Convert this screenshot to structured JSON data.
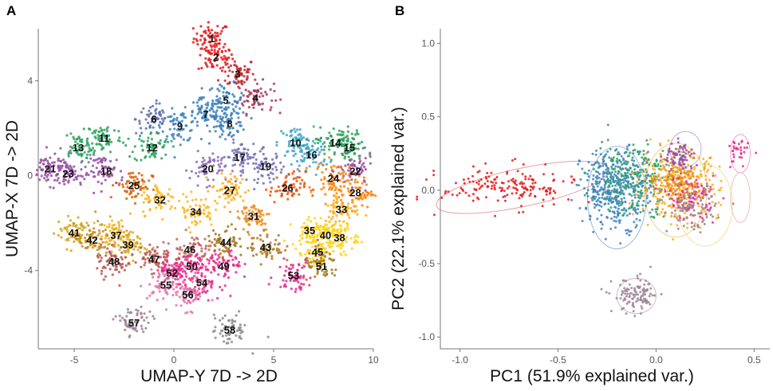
{
  "chart_data": [
    {
      "type": "scatter",
      "panel": "A",
      "xlabel": "UMAP-Y 7D -> 2D",
      "ylabel": "UMAP-X 7D -> 2D",
      "xlim": [
        -6.8,
        10
      ],
      "ylim": [
        -7.3,
        6.2
      ],
      "xticks": [
        -5,
        0,
        5,
        10
      ],
      "yticks": [
        -4,
        0,
        4
      ],
      "grid": false,
      "clusters": [
        {
          "label": "1",
          "x": 1.9,
          "y": 5.8,
          "color": "#e41a1c"
        },
        {
          "label": "2",
          "x": 2.1,
          "y": 5.0,
          "color": "#e41a1c"
        },
        {
          "label": "3",
          "x": 3.2,
          "y": 4.3,
          "color": "#c1272d"
        },
        {
          "label": "4",
          "x": 4.1,
          "y": 3.3,
          "color": "#a8385a"
        },
        {
          "label": "5",
          "x": 2.6,
          "y": 3.2,
          "color": "#377eb8"
        },
        {
          "label": "6",
          "x": -1.0,
          "y": 2.4,
          "color": "#5a6fb5"
        },
        {
          "label": "7",
          "x": 1.6,
          "y": 2.6,
          "color": "#377eb8"
        },
        {
          "label": "8",
          "x": 2.8,
          "y": 2.2,
          "color": "#377eb8"
        },
        {
          "label": "9",
          "x": 0.3,
          "y": 2.1,
          "color": "#3b83bd"
        },
        {
          "label": "10",
          "x": 6.1,
          "y": 1.4,
          "color": "#41a6c4"
        },
        {
          "label": "11",
          "x": -3.5,
          "y": 1.6,
          "color": "#2ca25f"
        },
        {
          "label": "12",
          "x": -1.1,
          "y": 1.2,
          "color": "#2ca25f"
        },
        {
          "label": "13",
          "x": -4.8,
          "y": 1.2,
          "color": "#2ca25f"
        },
        {
          "label": "14",
          "x": 8.1,
          "y": 1.4,
          "color": "#31a354"
        },
        {
          "label": "15",
          "x": 8.8,
          "y": 1.2,
          "color": "#2ca25f"
        },
        {
          "label": "16",
          "x": 6.9,
          "y": 0.9,
          "color": "#41a6c4"
        },
        {
          "label": "17",
          "x": 3.3,
          "y": 0.8,
          "color": "#7570b3"
        },
        {
          "label": "18",
          "x": -3.4,
          "y": 0.2,
          "color": "#984ea3"
        },
        {
          "label": "19",
          "x": 4.6,
          "y": 0.4,
          "color": "#7570b3"
        },
        {
          "label": "20",
          "x": 1.7,
          "y": 0.3,
          "color": "#8e6bb5"
        },
        {
          "label": "21",
          "x": -6.2,
          "y": 0.3,
          "color": "#984ea3"
        },
        {
          "label": "22",
          "x": 9.1,
          "y": 0.2,
          "color": "#984ea3"
        },
        {
          "label": "23",
          "x": -5.3,
          "y": 0.1,
          "color": "#984ea3"
        },
        {
          "label": "24",
          "x": 8.0,
          "y": -0.1,
          "color": "#ff7f00"
        },
        {
          "label": "25",
          "x": -2.0,
          "y": -0.4,
          "color": "#d95f02"
        },
        {
          "label": "26",
          "x": 5.7,
          "y": -0.5,
          "color": "#e6550d"
        },
        {
          "label": "27",
          "x": 2.8,
          "y": -0.6,
          "color": "#fdae1a"
        },
        {
          "label": "28",
          "x": 9.1,
          "y": -0.7,
          "color": "#ff7f00"
        },
        {
          "label": "31",
          "x": 4.0,
          "y": -1.7,
          "color": "#f08a18"
        },
        {
          "label": "32",
          "x": -0.7,
          "y": -1.0,
          "color": "#fdb81c"
        },
        {
          "label": "33",
          "x": 8.4,
          "y": -1.4,
          "color": "#fdae1a"
        },
        {
          "label": "34",
          "x": 1.1,
          "y": -1.5,
          "color": "#fdb81c"
        },
        {
          "label": "35",
          "x": 6.8,
          "y": -2.3,
          "color": "#ffd21a"
        },
        {
          "label": "37",
          "x": -2.9,
          "y": -2.5,
          "color": "#f0b41a"
        },
        {
          "label": "38",
          "x": 8.3,
          "y": -2.6,
          "color": "#ffd21a"
        },
        {
          "label": "39",
          "x": -2.3,
          "y": -2.9,
          "color": "#d9a522"
        },
        {
          "label": "40",
          "x": 7.6,
          "y": -2.5,
          "color": "#ffd21a"
        },
        {
          "label": "41",
          "x": -5.0,
          "y": -2.4,
          "color": "#d8a31a"
        },
        {
          "label": "42",
          "x": -4.1,
          "y": -2.7,
          "color": "#c48a1a"
        },
        {
          "label": "43",
          "x": 4.6,
          "y": -3.0,
          "color": "#b07a26"
        },
        {
          "label": "44",
          "x": 2.6,
          "y": -2.8,
          "color": "#a6761d"
        },
        {
          "label": "45",
          "x": 7.2,
          "y": -3.2,
          "color": "#ffd21a"
        },
        {
          "label": "46",
          "x": 0.8,
          "y": -3.1,
          "color": "#bd6a5a"
        },
        {
          "label": "47",
          "x": -1.0,
          "y": -3.5,
          "color": "#b5574b"
        },
        {
          "label": "48",
          "x": -3.0,
          "y": -3.6,
          "color": "#b5574b"
        },
        {
          "label": "49",
          "x": 2.5,
          "y": -3.8,
          "color": "#e7298a"
        },
        {
          "label": "50",
          "x": 0.9,
          "y": -3.8,
          "color": "#e7298a"
        },
        {
          "label": "51",
          "x": 7.4,
          "y": -3.8,
          "color": "#a6761d"
        },
        {
          "label": "52",
          "x": -0.1,
          "y": -4.1,
          "color": "#e7298a"
        },
        {
          "label": "53",
          "x": 6.0,
          "y": -4.2,
          "color": "#e7298a"
        },
        {
          "label": "54",
          "x": 1.4,
          "y": -4.5,
          "color": "#e7298a"
        },
        {
          "label": "55",
          "x": -0.4,
          "y": -4.6,
          "color": "#de77ae"
        },
        {
          "label": "56",
          "x": 0.7,
          "y": -5.0,
          "color": "#de77ae"
        },
        {
          "label": "57",
          "x": -2.0,
          "y": -6.2,
          "color": "#9c8495"
        },
        {
          "label": "58",
          "x": 2.8,
          "y": -6.5,
          "color": "#8c8c8c"
        }
      ]
    },
    {
      "type": "scatter",
      "panel": "B",
      "xlabel": "PC1 (51.9% explained var.)",
      "ylabel": "PC2 (22.1% explained var.)",
      "xlim": [
        -1.1,
        0.58
      ],
      "ylim": [
        -1.08,
        1.1
      ],
      "xticks": [
        -1.0,
        -0.5,
        0.0,
        0.5
      ],
      "xtick_labels": [
        "-1.0",
        "-0.5",
        "0.0",
        "0.5"
      ],
      "yticks": [
        -1.0,
        -0.5,
        0.0,
        0.5,
        1.0
      ],
      "ytick_labels": [
        "-1.0",
        "-0.5",
        "0.0",
        "0.5",
        "1.0"
      ],
      "grid": false,
      "groups": [
        {
          "name": "red",
          "cx": -0.75,
          "cy": 0.02,
          "sx": 0.17,
          "sy": 0.07,
          "n": 170,
          "color": "#e41a1c"
        },
        {
          "name": "blue",
          "cx": -0.2,
          "cy": 0.02,
          "sx": 0.09,
          "sy": 0.13,
          "n": 420,
          "color": "#3b83bd"
        },
        {
          "name": "green",
          "cx": -0.12,
          "cy": 0.08,
          "sx": 0.1,
          "sy": 0.12,
          "n": 200,
          "color": "#2ca25f"
        },
        {
          "name": "orange",
          "cx": 0.12,
          "cy": 0.03,
          "sx": 0.1,
          "sy": 0.11,
          "n": 300,
          "color": "#fdae1a"
        },
        {
          "name": "dark-orange",
          "cx": 0.1,
          "cy": 0.08,
          "sx": 0.07,
          "sy": 0.08,
          "n": 120,
          "color": "#f08a18"
        },
        {
          "name": "purple",
          "cx": 0.12,
          "cy": 0.22,
          "sx": 0.04,
          "sy": 0.05,
          "n": 80,
          "color": "#984ea3"
        },
        {
          "name": "pink",
          "cx": 0.18,
          "cy": -0.05,
          "sx": 0.06,
          "sy": 0.07,
          "n": 80,
          "color": "#e7298a"
        },
        {
          "name": "mauve",
          "cx": 0.18,
          "cy": -0.12,
          "sx": 0.06,
          "sy": 0.08,
          "n": 110,
          "color": "#a17c8e"
        },
        {
          "name": "grey-mauve",
          "cx": -0.1,
          "cy": -0.72,
          "sx": 0.06,
          "sy": 0.06,
          "n": 110,
          "color": "#9c8495"
        },
        {
          "name": "magenta",
          "cx": 0.42,
          "cy": 0.25,
          "sx": 0.025,
          "sy": 0.05,
          "n": 30,
          "color": "#e7298a"
        }
      ],
      "ellipses": [
        {
          "cx": -0.68,
          "cy": 0.02,
          "rx": 0.45,
          "ry": 0.13,
          "angle": 12,
          "color": "#e7a0a0"
        },
        {
          "cx": -0.2,
          "cy": -0.05,
          "rx": 0.15,
          "ry": 0.35,
          "angle": 0,
          "color": "#9fb6d8"
        },
        {
          "cx": 0.1,
          "cy": 0.0,
          "rx": 0.16,
          "ry": 0.32,
          "angle": 0,
          "color": "#f0d090"
        },
        {
          "cx": -0.1,
          "cy": -0.72,
          "rx": 0.1,
          "ry": 0.12,
          "angle": 0,
          "color": "#d0b8c8"
        },
        {
          "cx": 0.43,
          "cy": 0.25,
          "rx": 0.05,
          "ry": 0.13,
          "angle": 0,
          "color": "#f0a0d0"
        },
        {
          "cx": 0.43,
          "cy": -0.05,
          "rx": 0.05,
          "ry": 0.17,
          "angle": 0,
          "color": "#f0c0c0"
        },
        {
          "cx": 0.15,
          "cy": 0.28,
          "rx": 0.08,
          "ry": 0.12,
          "angle": 0,
          "color": "#c8a8d8"
        },
        {
          "cx": 0.25,
          "cy": -0.1,
          "rx": 0.14,
          "ry": 0.28,
          "angle": 0,
          "color": "#f5e0a0"
        }
      ]
    }
  ]
}
